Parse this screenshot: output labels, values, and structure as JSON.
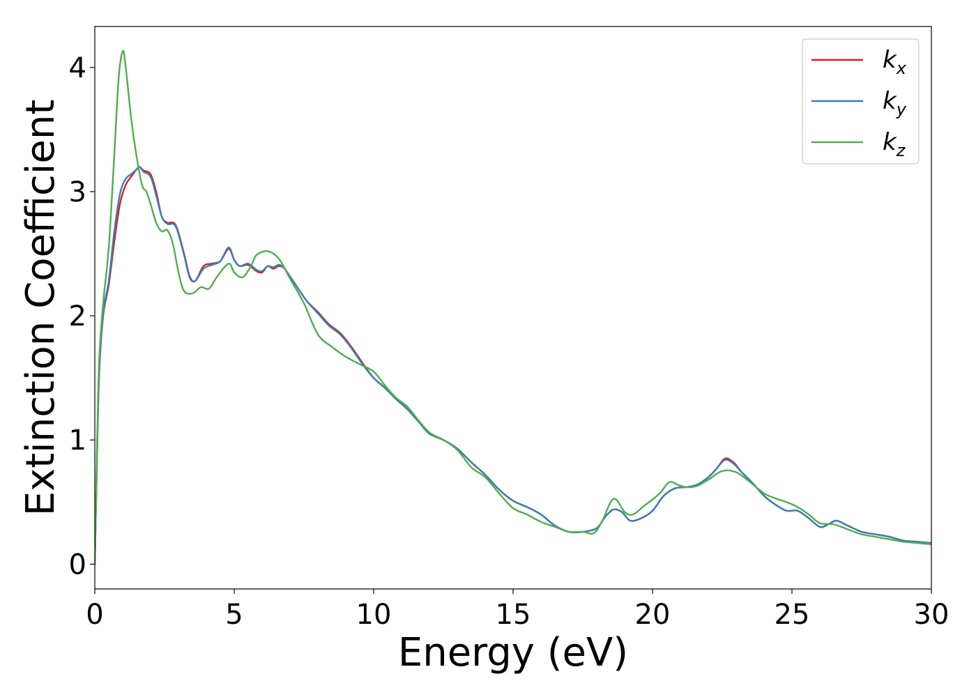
{
  "chart_data": {
    "type": "line",
    "title": "",
    "xlabel": "Energy (eV)",
    "ylabel": "Extinction Coefficient",
    "xlim": [
      0,
      30
    ],
    "ylim": [
      -0.2,
      4.33
    ],
    "xticks": [
      0,
      5,
      10,
      15,
      20,
      25,
      30
    ],
    "xtick_labels": [
      "0",
      "5",
      "10",
      "15",
      "20",
      "25",
      "30"
    ],
    "yticks": [
      0,
      1,
      2,
      3,
      4
    ],
    "ytick_labels": [
      "0",
      "1",
      "2",
      "3",
      "4"
    ],
    "grid": false,
    "legend_position": "top-right",
    "series": [
      {
        "name": "kx",
        "label_main": "k",
        "label_sub": "x",
        "color": "#e41a1c",
        "points": [
          [
            0,
            0
          ],
          [
            0.05,
            0.55
          ],
          [
            0.15,
            1.5
          ],
          [
            0.3,
            2.0
          ],
          [
            0.5,
            2.25
          ],
          [
            0.7,
            2.6
          ],
          [
            0.9,
            2.9
          ],
          [
            1.1,
            3.05
          ],
          [
            1.3,
            3.12
          ],
          [
            1.5,
            3.18
          ],
          [
            1.6,
            3.2
          ],
          [
            1.75,
            3.17
          ],
          [
            2.0,
            3.14
          ],
          [
            2.2,
            3.0
          ],
          [
            2.4,
            2.8
          ],
          [
            2.6,
            2.75
          ],
          [
            2.9,
            2.73
          ],
          [
            3.2,
            2.5
          ],
          [
            3.4,
            2.32
          ],
          [
            3.6,
            2.28
          ],
          [
            3.9,
            2.4
          ],
          [
            4.2,
            2.42
          ],
          [
            4.5,
            2.44
          ],
          [
            4.8,
            2.54
          ],
          [
            5.0,
            2.45
          ],
          [
            5.2,
            2.4
          ],
          [
            5.5,
            2.41
          ],
          [
            5.8,
            2.36
          ],
          [
            6.0,
            2.35
          ],
          [
            6.2,
            2.4
          ],
          [
            6.4,
            2.38
          ],
          [
            6.6,
            2.4
          ],
          [
            6.8,
            2.38
          ],
          [
            7.2,
            2.25
          ],
          [
            7.6,
            2.12
          ],
          [
            8.0,
            2.03
          ],
          [
            8.4,
            1.93
          ],
          [
            8.8,
            1.86
          ],
          [
            9.2,
            1.75
          ],
          [
            9.6,
            1.62
          ],
          [
            10.0,
            1.5
          ],
          [
            10.4,
            1.42
          ],
          [
            10.8,
            1.33
          ],
          [
            11.2,
            1.25
          ],
          [
            11.6,
            1.15
          ],
          [
            12.0,
            1.05
          ],
          [
            12.5,
            1.0
          ],
          [
            13.0,
            0.93
          ],
          [
            13.5,
            0.82
          ],
          [
            14.0,
            0.72
          ],
          [
            14.5,
            0.6
          ],
          [
            15.0,
            0.51
          ],
          [
            15.5,
            0.46
          ],
          [
            16.0,
            0.4
          ],
          [
            16.5,
            0.31
          ],
          [
            17.0,
            0.26
          ],
          [
            17.5,
            0.26
          ],
          [
            18.0,
            0.29
          ],
          [
            18.3,
            0.38
          ],
          [
            18.6,
            0.44
          ],
          [
            18.9,
            0.42
          ],
          [
            19.2,
            0.35
          ],
          [
            19.6,
            0.37
          ],
          [
            20.0,
            0.43
          ],
          [
            20.4,
            0.55
          ],
          [
            20.8,
            0.61
          ],
          [
            21.2,
            0.62
          ],
          [
            21.6,
            0.64
          ],
          [
            22.0,
            0.7
          ],
          [
            22.3,
            0.77
          ],
          [
            22.6,
            0.85
          ],
          [
            22.9,
            0.82
          ],
          [
            23.2,
            0.74
          ],
          [
            23.6,
            0.65
          ],
          [
            24.0,
            0.55
          ],
          [
            24.4,
            0.48
          ],
          [
            24.8,
            0.43
          ],
          [
            25.2,
            0.43
          ],
          [
            25.6,
            0.37
          ],
          [
            26.0,
            0.3
          ],
          [
            26.3,
            0.32
          ],
          [
            26.6,
            0.35
          ],
          [
            27.0,
            0.31
          ],
          [
            27.5,
            0.26
          ],
          [
            28.0,
            0.24
          ],
          [
            28.5,
            0.22
          ],
          [
            29.0,
            0.19
          ],
          [
            29.5,
            0.18
          ],
          [
            30.0,
            0.17
          ]
        ]
      },
      {
        "name": "ky",
        "label_main": "k",
        "label_sub": "y",
        "color": "#377eb8",
        "points": [
          [
            0,
            0
          ],
          [
            0.05,
            0.55
          ],
          [
            0.15,
            1.5
          ],
          [
            0.3,
            2.02
          ],
          [
            0.5,
            2.28
          ],
          [
            0.7,
            2.68
          ],
          [
            0.9,
            2.98
          ],
          [
            1.1,
            3.1
          ],
          [
            1.3,
            3.14
          ],
          [
            1.5,
            3.18
          ],
          [
            1.6,
            3.2
          ],
          [
            1.75,
            3.16
          ],
          [
            2.0,
            3.12
          ],
          [
            2.2,
            2.97
          ],
          [
            2.4,
            2.8
          ],
          [
            2.6,
            2.74
          ],
          [
            2.9,
            2.72
          ],
          [
            3.2,
            2.49
          ],
          [
            3.4,
            2.31
          ],
          [
            3.6,
            2.28
          ],
          [
            3.9,
            2.38
          ],
          [
            4.2,
            2.41
          ],
          [
            4.5,
            2.44
          ],
          [
            4.8,
            2.55
          ],
          [
            5.0,
            2.45
          ],
          [
            5.2,
            2.4
          ],
          [
            5.5,
            2.42
          ],
          [
            5.8,
            2.37
          ],
          [
            6.0,
            2.36
          ],
          [
            6.2,
            2.4
          ],
          [
            6.4,
            2.39
          ],
          [
            6.6,
            2.41
          ],
          [
            6.8,
            2.38
          ],
          [
            7.2,
            2.25
          ],
          [
            7.6,
            2.12
          ],
          [
            8.0,
            2.02
          ],
          [
            8.4,
            1.92
          ],
          [
            8.8,
            1.85
          ],
          [
            9.2,
            1.74
          ],
          [
            9.6,
            1.61
          ],
          [
            10.0,
            1.5
          ],
          [
            10.4,
            1.42
          ],
          [
            10.8,
            1.33
          ],
          [
            11.2,
            1.25
          ],
          [
            11.6,
            1.15
          ],
          [
            12.0,
            1.05
          ],
          [
            12.5,
            1.0
          ],
          [
            13.0,
            0.93
          ],
          [
            13.5,
            0.82
          ],
          [
            14.0,
            0.72
          ],
          [
            14.5,
            0.6
          ],
          [
            15.0,
            0.51
          ],
          [
            15.5,
            0.46
          ],
          [
            16.0,
            0.4
          ],
          [
            16.5,
            0.31
          ],
          [
            17.0,
            0.26
          ],
          [
            17.5,
            0.26
          ],
          [
            18.0,
            0.29
          ],
          [
            18.3,
            0.38
          ],
          [
            18.6,
            0.44
          ],
          [
            18.9,
            0.42
          ],
          [
            19.2,
            0.35
          ],
          [
            19.6,
            0.37
          ],
          [
            20.0,
            0.43
          ],
          [
            20.4,
            0.55
          ],
          [
            20.8,
            0.61
          ],
          [
            21.2,
            0.62
          ],
          [
            21.6,
            0.64
          ],
          [
            22.0,
            0.7
          ],
          [
            22.3,
            0.77
          ],
          [
            22.6,
            0.84
          ],
          [
            22.9,
            0.81
          ],
          [
            23.2,
            0.74
          ],
          [
            23.6,
            0.65
          ],
          [
            24.0,
            0.55
          ],
          [
            24.4,
            0.48
          ],
          [
            24.8,
            0.43
          ],
          [
            25.2,
            0.43
          ],
          [
            25.6,
            0.37
          ],
          [
            26.0,
            0.3
          ],
          [
            26.3,
            0.32
          ],
          [
            26.6,
            0.35
          ],
          [
            27.0,
            0.31
          ],
          [
            27.5,
            0.26
          ],
          [
            28.0,
            0.24
          ],
          [
            28.5,
            0.22
          ],
          [
            29.0,
            0.19
          ],
          [
            29.5,
            0.18
          ],
          [
            30.0,
            0.17
          ]
        ]
      },
      {
        "name": "kz",
        "label_main": "k",
        "label_sub": "z",
        "color": "#4daf4a",
        "points": [
          [
            0,
            0
          ],
          [
            0.05,
            0.6
          ],
          [
            0.15,
            1.6
          ],
          [
            0.3,
            2.1
          ],
          [
            0.5,
            2.55
          ],
          [
            0.7,
            3.3
          ],
          [
            0.85,
            3.9
          ],
          [
            1.0,
            4.13
          ],
          [
            1.1,
            4.02
          ],
          [
            1.3,
            3.6
          ],
          [
            1.5,
            3.28
          ],
          [
            1.7,
            3.05
          ],
          [
            1.85,
            3.0
          ],
          [
            2.0,
            2.9
          ],
          [
            2.2,
            2.75
          ],
          [
            2.4,
            2.68
          ],
          [
            2.6,
            2.69
          ],
          [
            2.8,
            2.58
          ],
          [
            3.0,
            2.35
          ],
          [
            3.2,
            2.2
          ],
          [
            3.5,
            2.18
          ],
          [
            3.8,
            2.23
          ],
          [
            4.1,
            2.22
          ],
          [
            4.4,
            2.32
          ],
          [
            4.8,
            2.42
          ],
          [
            5.0,
            2.35
          ],
          [
            5.3,
            2.31
          ],
          [
            5.6,
            2.4
          ],
          [
            5.8,
            2.49
          ],
          [
            6.2,
            2.52
          ],
          [
            6.6,
            2.46
          ],
          [
            7.0,
            2.3
          ],
          [
            7.5,
            2.1
          ],
          [
            8.0,
            1.85
          ],
          [
            8.5,
            1.75
          ],
          [
            9.0,
            1.67
          ],
          [
            9.5,
            1.61
          ],
          [
            10.0,
            1.55
          ],
          [
            10.4,
            1.44
          ],
          [
            10.8,
            1.34
          ],
          [
            11.2,
            1.27
          ],
          [
            11.6,
            1.16
          ],
          [
            12.0,
            1.06
          ],
          [
            12.5,
            1.0
          ],
          [
            13.0,
            0.92
          ],
          [
            13.5,
            0.78
          ],
          [
            14.0,
            0.7
          ],
          [
            14.5,
            0.57
          ],
          [
            15.0,
            0.45
          ],
          [
            15.5,
            0.4
          ],
          [
            16.0,
            0.34
          ],
          [
            16.5,
            0.3
          ],
          [
            17.0,
            0.26
          ],
          [
            17.5,
            0.26
          ],
          [
            17.9,
            0.25
          ],
          [
            18.2,
            0.35
          ],
          [
            18.5,
            0.5
          ],
          [
            18.7,
            0.52
          ],
          [
            19.0,
            0.42
          ],
          [
            19.3,
            0.4
          ],
          [
            19.7,
            0.47
          ],
          [
            20.0,
            0.52
          ],
          [
            20.3,
            0.58
          ],
          [
            20.6,
            0.66
          ],
          [
            20.9,
            0.64
          ],
          [
            21.2,
            0.62
          ],
          [
            21.6,
            0.63
          ],
          [
            22.0,
            0.68
          ],
          [
            22.5,
            0.75
          ],
          [
            23.0,
            0.74
          ],
          [
            23.5,
            0.66
          ],
          [
            24.0,
            0.57
          ],
          [
            24.4,
            0.53
          ],
          [
            24.8,
            0.5
          ],
          [
            25.2,
            0.46
          ],
          [
            25.6,
            0.4
          ],
          [
            26.0,
            0.33
          ],
          [
            26.5,
            0.32
          ],
          [
            27.0,
            0.28
          ],
          [
            27.5,
            0.24
          ],
          [
            28.0,
            0.22
          ],
          [
            28.5,
            0.2
          ],
          [
            29.0,
            0.18
          ],
          [
            29.5,
            0.17
          ],
          [
            30.0,
            0.16
          ]
        ]
      }
    ]
  }
}
